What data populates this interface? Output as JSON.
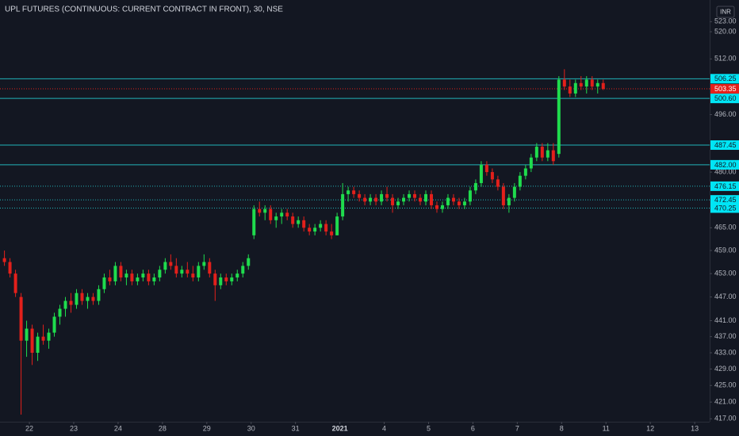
{
  "chart_data": {
    "type": "candlestick",
    "title": "UPL FUTURES (CONTINUOUS: CURRENT CONTRACT IN FRONT), 30, NSE",
    "currency": "INR",
    "log_scale": true,
    "grid": false,
    "up_color": "#1fdc4d",
    "down_color": "#e3201b",
    "level_color": "#21b3b8",
    "last_color": "#e3201b",
    "ylim": [
      416.3,
      529.5
    ],
    "yticks": [
      {
        "value": 523,
        "label": "523.00"
      },
      {
        "value": 520,
        "label": "520.00"
      },
      {
        "value": 512,
        "label": "512.00"
      },
      {
        "value": 496,
        "label": "496.00"
      },
      {
        "value": 480,
        "label": "480.00"
      },
      {
        "value": 465,
        "label": "465.00"
      },
      {
        "value": 459,
        "label": "459.00"
      },
      {
        "value": 453,
        "label": "453.00"
      },
      {
        "value": 447,
        "label": "447.00"
      },
      {
        "value": 441,
        "label": "441.00"
      },
      {
        "value": 437,
        "label": "437.00"
      },
      {
        "value": 433,
        "label": "433.00"
      },
      {
        "value": 429,
        "label": "429.00"
      },
      {
        "value": 425,
        "label": "425.00"
      },
      {
        "value": 421,
        "label": "421.00"
      },
      {
        "value": 417,
        "label": "417.00"
      }
    ],
    "levels": [
      {
        "price": 506.25,
        "style": "solid"
      },
      {
        "price": {
          "value": 500.6,
          "label": "500.60"
        },
        "style": "solid"
      },
      {
        "price": 487.45,
        "style": "solid"
      },
      {
        "price": {
          "value": 482,
          "label": "482.00"
        },
        "style": "solid"
      },
      {
        "price": 476.15,
        "style": "dotted"
      },
      {
        "price": 472.45,
        "style": "dotted"
      },
      {
        "price": 470.25,
        "style": "dotted"
      },
      {
        "price": 503.35,
        "style": "last"
      }
    ],
    "xlim": [
      -0.8,
      127.2
    ],
    "xticks": [
      {
        "value": 4.5,
        "label": "22"
      },
      {
        "value": 12.5,
        "label": "23"
      },
      {
        "value": 20.5,
        "label": "24"
      },
      {
        "value": 28.5,
        "label": "28"
      },
      {
        "value": 36.5,
        "label": "29"
      },
      {
        "value": 44.5,
        "label": "30"
      },
      {
        "value": 52.5,
        "label": "31"
      },
      {
        "value": 60.5,
        "label": "2021",
        "bold": true
      },
      {
        "value": 68.5,
        "label": "4"
      },
      {
        "value": 76.5,
        "label": "5"
      },
      {
        "value": 84.5,
        "label": "6"
      },
      {
        "value": 92.5,
        "label": "7"
      },
      {
        "value": 100.5,
        "label": "8"
      },
      {
        "value": 108.5,
        "label": "11"
      },
      {
        "value": 116.5,
        "label": "12"
      },
      {
        "value": 124.5,
        "label": "13"
      }
    ],
    "open": [
      457,
      456,
      453,
      447,
      436,
      439,
      433,
      437,
      436,
      438,
      442,
      444,
      446,
      445,
      448,
      446,
      447,
      446,
      449,
      452,
      451,
      455,
      452,
      453,
      451,
      452,
      453,
      451,
      452,
      454,
      456,
      455,
      453,
      454,
      453,
      452,
      455,
      456,
      453,
      450,
      452,
      451,
      452,
      453,
      455,
      463,
      470,
      469,
      470,
      467,
      468,
      469,
      468,
      466,
      467,
      465,
      464,
      465,
      466,
      464,
      463,
      468,
      474,
      475,
      474,
      473,
      472,
      473,
      472,
      474,
      473,
      471,
      472,
      473,
      474,
      473,
      472,
      474,
      471,
      470,
      471,
      473,
      472,
      471,
      472,
      475,
      477,
      482,
      480,
      478,
      476,
      471,
      473,
      476,
      479,
      481,
      484,
      487,
      484,
      486,
      485,
      506,
      504,
      502,
      505,
      504,
      506,
      504,
      505
    ],
    "high": [
      459,
      457,
      454,
      448,
      441,
      440,
      438,
      440,
      439,
      443,
      445,
      447,
      448,
      449,
      449,
      448,
      448,
      450,
      453,
      454,
      456,
      456,
      454,
      454,
      453,
      454,
      454,
      453,
      455,
      457,
      458,
      457,
      455,
      456,
      455,
      456,
      458,
      457,
      454,
      453,
      453,
      453,
      454,
      456,
      458,
      471,
      472,
      471,
      471,
      469,
      470,
      470,
      469,
      468,
      468,
      466,
      466,
      467,
      467,
      466,
      469,
      477,
      476,
      476,
      475,
      474,
      474,
      474,
      475,
      476,
      474,
      473,
      474,
      475,
      475,
      474,
      475,
      475,
      472,
      472,
      474,
      474,
      473,
      473,
      476,
      478,
      483,
      483,
      481,
      479,
      477,
      474,
      477,
      480,
      482,
      485,
      488,
      488,
      488,
      488,
      507,
      509,
      506,
      506,
      507,
      507,
      507,
      506,
      506
    ],
    "low": [
      455,
      452,
      447,
      418,
      432,
      430,
      431,
      435,
      434,
      437,
      440,
      442,
      443,
      444,
      445,
      444,
      445,
      445,
      448,
      450,
      450,
      451,
      450,
      450,
      450,
      451,
      450,
      450,
      451,
      453,
      454,
      452,
      452,
      452,
      451,
      451,
      454,
      452,
      446,
      449,
      450,
      450,
      451,
      452,
      454,
      462,
      468,
      467,
      466,
      465,
      466,
      467,
      465,
      465,
      464,
      463,
      463,
      464,
      463,
      462,
      463,
      467,
      472,
      473,
      472,
      471,
      471,
      471,
      471,
      472,
      469,
      470,
      471,
      472,
      472,
      471,
      471,
      470,
      469,
      469,
      470,
      471,
      470,
      470,
      471,
      474,
      476,
      479,
      477,
      475,
      470,
      469,
      472,
      475,
      478,
      480,
      483,
      483,
      483,
      482,
      484,
      503,
      501,
      501,
      503,
      502,
      503,
      502,
      503
    ],
    "close": [
      456,
      453,
      448,
      436,
      439,
      433,
      437,
      436,
      438,
      442,
      444,
      446,
      445,
      448,
      446,
      447,
      446,
      449,
      452,
      451,
      455,
      452,
      453,
      451,
      452,
      453,
      451,
      452,
      454,
      456,
      455,
      453,
      454,
      453,
      452,
      455,
      456,
      453,
      450,
      452,
      451,
      452,
      453,
      455,
      457,
      470,
      469,
      470,
      467,
      468,
      469,
      468,
      466,
      467,
      465,
      464,
      465,
      466,
      464,
      463,
      468,
      474,
      475,
      474,
      473,
      472,
      473,
      472,
      474,
      473,
      471,
      472,
      473,
      474,
      473,
      472,
      474,
      471,
      470,
      471,
      473,
      472,
      471,
      472,
      475,
      477,
      482,
      480,
      478,
      476,
      471,
      473,
      476,
      479,
      481,
      484,
      487,
      484,
      486,
      483,
      506,
      504,
      502,
      505,
      504,
      506,
      504,
      505,
      503.35
    ]
  }
}
